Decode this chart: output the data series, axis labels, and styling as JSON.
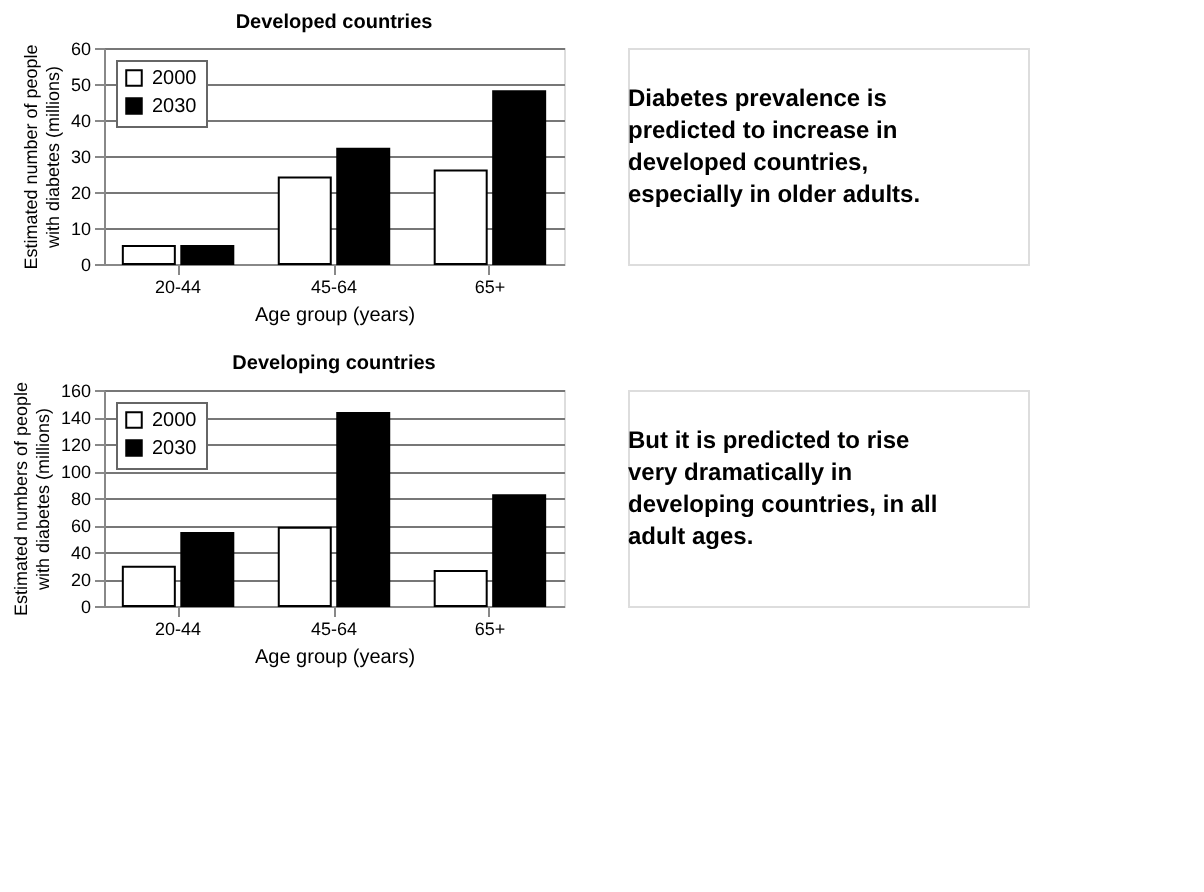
{
  "chart_data": [
    {
      "type": "bar",
      "title": "Developed countries",
      "xlabel": "Age group (years)",
      "ylabel": "Estimated number of people with diabetes (millions)",
      "categories": [
        "20-44",
        "45-64",
        "65+"
      ],
      "series": [
        {
          "name": "2000",
          "color": "#ffffff",
          "values": [
            5,
            24,
            26
          ]
        },
        {
          "name": "2030",
          "color": "#000000",
          "values": [
            5,
            32,
            48
          ]
        }
      ],
      "ylim": [
        0,
        60
      ],
      "yticks": [
        0,
        10,
        20,
        30,
        40,
        50,
        60
      ],
      "grid": "y",
      "legend": "top left",
      "annotations": [
        "Diabetes prevalence is predicted to increase in developed countries, especially in older adults."
      ]
    },
    {
      "type": "bar",
      "title": "Developing countries",
      "xlabel": "Age group (years)",
      "ylabel": "Estimated numbers of people with diabetes (millions)",
      "categories": [
        "20-44",
        "45-64",
        "65+"
      ],
      "series": [
        {
          "name": "2000",
          "color": "#ffffff",
          "values": [
            29,
            58,
            26
          ]
        },
        {
          "name": "2030",
          "color": "#000000",
          "values": [
            54,
            143,
            82
          ]
        }
      ],
      "ylim": [
        0,
        160
      ],
      "yticks": [
        0,
        20,
        40,
        60,
        80,
        100,
        120,
        140,
        160
      ],
      "grid": "y",
      "legend": "top left",
      "annotations": [
        "But it is predicted to rise very dramatically in developing countries, in all adult ages."
      ]
    }
  ]
}
